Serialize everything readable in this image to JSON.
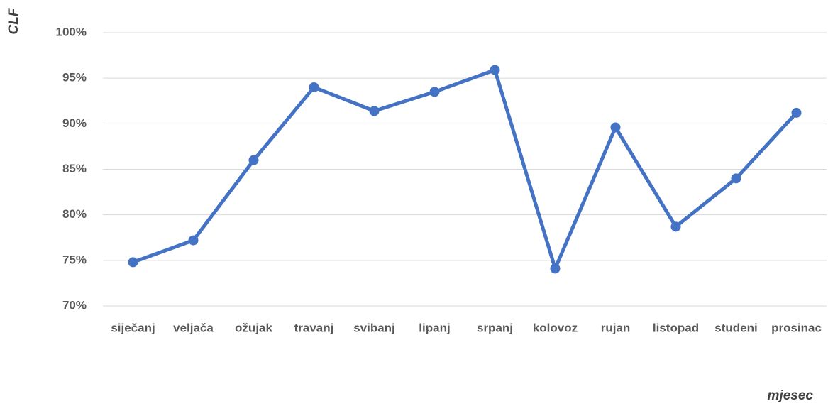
{
  "chart_data": {
    "type": "line",
    "y_label": "CLF",
    "x_label": "mjesec",
    "categories": [
      "siječanj",
      "veljača",
      "ožujak",
      "travanj",
      "svibanj",
      "lipanj",
      "srpanj",
      "kolovoz",
      "rujan",
      "listopad",
      "studeni",
      "prosinac"
    ],
    "series": [
      {
        "color": "#4472c4",
        "values": [
          74.8,
          77.2,
          86.0,
          94.0,
          91.4,
          93.5,
          95.9,
          74.1,
          89.6,
          78.7,
          84.0,
          91.2
        ]
      }
    ],
    "ylim": [
      70,
      100
    ],
    "yticks": [
      {
        "value": 70,
        "label": "70%"
      },
      {
        "value": 75,
        "label": "75%"
      },
      {
        "value": 80,
        "label": "80%"
      },
      {
        "value": 85,
        "label": "85%"
      },
      {
        "value": 90,
        "label": "90%"
      },
      {
        "value": 95,
        "label": "95%"
      },
      {
        "value": 100,
        "label": "100%"
      }
    ],
    "grid": true
  }
}
